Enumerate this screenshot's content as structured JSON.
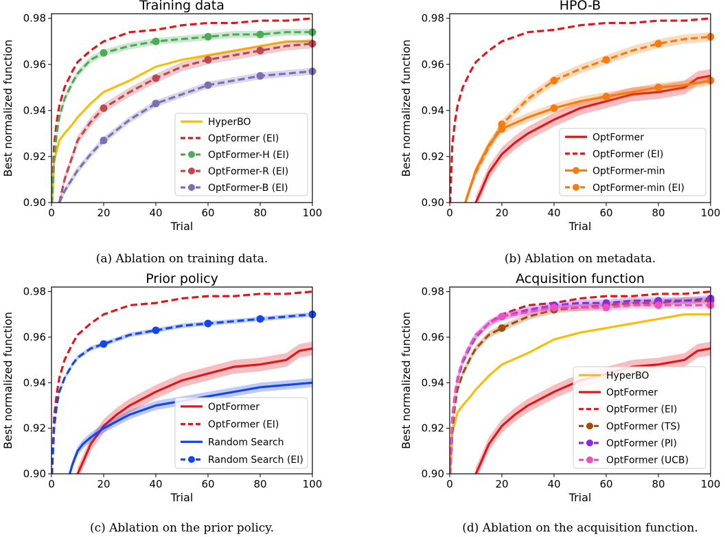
{
  "chart_data": [
    {
      "type": "line",
      "title": "Training data",
      "caption": "(a) Ablation on training data.",
      "xlabel": "Trial",
      "ylabel": "Best normalized function",
      "xlim": [
        0,
        100
      ],
      "ylim": [
        0.9,
        0.982
      ],
      "xticks": [
        "0",
        "20",
        "40",
        "60",
        "80",
        "100"
      ],
      "yticks": [
        "0.90",
        "0.92",
        "0.94",
        "0.96",
        "0.98"
      ],
      "legend_position": "lower-right",
      "series": [
        {
          "name": "HyperBO",
          "color": "#fbbc05",
          "dash": "solid",
          "marker": false,
          "band": 0,
          "x": [
            0,
            1,
            3,
            5,
            8,
            10,
            15,
            20,
            30,
            40,
            50,
            60,
            70,
            80,
            90,
            100
          ],
          "y": [
            0.895,
            0.918,
            0.927,
            0.93,
            0.934,
            0.937,
            0.943,
            0.948,
            0.953,
            0.959,
            0.962,
            0.964,
            0.966,
            0.968,
            0.97,
            0.97
          ]
        },
        {
          "name": "OptFormer (EI)",
          "color": "#e0161b",
          "dash": "dash",
          "marker": false,
          "band": 0,
          "x": [
            0,
            1,
            2,
            3,
            5,
            8,
            10,
            15,
            20,
            30,
            40,
            50,
            60,
            70,
            80,
            90,
            100
          ],
          "y": [
            0.895,
            0.925,
            0.935,
            0.942,
            0.95,
            0.957,
            0.961,
            0.966,
            0.97,
            0.974,
            0.975,
            0.977,
            0.978,
            0.978,
            0.979,
            0.979,
            0.98
          ]
        },
        {
          "name": "OptFormer-H (EI)",
          "color": "#4daa57",
          "dash": "dash",
          "marker": true,
          "band": 0.0015,
          "x": [
            0,
            1,
            2,
            3,
            5,
            8,
            10,
            15,
            20,
            30,
            40,
            50,
            60,
            70,
            80,
            90,
            100
          ],
          "y": [
            0.895,
            0.918,
            0.93,
            0.937,
            0.945,
            0.952,
            0.956,
            0.962,
            0.965,
            0.968,
            0.97,
            0.971,
            0.972,
            0.973,
            0.973,
            0.974,
            0.974
          ],
          "markers_at": [
            20,
            40,
            60,
            80,
            100
          ]
        },
        {
          "name": "OptFormer-R (EI)",
          "color": "#c0474f",
          "dash": "dash",
          "marker": true,
          "band": 0.002,
          "x": [
            3,
            5,
            8,
            10,
            15,
            20,
            30,
            40,
            50,
            60,
            70,
            80,
            90,
            100
          ],
          "y": [
            0.9,
            0.91,
            0.92,
            0.927,
            0.935,
            0.941,
            0.948,
            0.954,
            0.959,
            0.962,
            0.964,
            0.966,
            0.968,
            0.969
          ],
          "markers_at": [
            20,
            40,
            60,
            80,
            100
          ]
        },
        {
          "name": "OptFormer-B (EI)",
          "color": "#7e6fb5",
          "dash": "dash",
          "marker": true,
          "band": 0.0015,
          "x": [
            3,
            5,
            10,
            15,
            20,
            30,
            40,
            50,
            60,
            70,
            80,
            90,
            100
          ],
          "y": [
            0.9,
            0.905,
            0.914,
            0.921,
            0.927,
            0.936,
            0.943,
            0.947,
            0.951,
            0.953,
            0.955,
            0.956,
            0.957
          ],
          "markers_at": [
            20,
            40,
            60,
            80,
            100
          ]
        }
      ]
    },
    {
      "type": "line",
      "title": "HPO-B",
      "caption": "(b) Ablation on metadata.",
      "xlabel": "Trial",
      "ylabel": "Best normalized function",
      "xlim": [
        0,
        100
      ],
      "ylim": [
        0.9,
        0.982
      ],
      "xticks": [
        "0",
        "20",
        "40",
        "60",
        "80",
        "100"
      ],
      "yticks": [
        "0.90",
        "0.92",
        "0.94",
        "0.96",
        "0.98"
      ],
      "legend_position": "lower-right",
      "series": [
        {
          "name": "OptFormer",
          "color": "#e0161b",
          "dash": "solid",
          "marker": false,
          "band": 0.003,
          "x": [
            10,
            12,
            15,
            20,
            25,
            30,
            40,
            50,
            60,
            70,
            80,
            90,
            95,
            100
          ],
          "y": [
            0.9,
            0.905,
            0.913,
            0.921,
            0.926,
            0.93,
            0.936,
            0.941,
            0.944,
            0.947,
            0.948,
            0.95,
            0.954,
            0.955
          ],
          "markers_at": []
        },
        {
          "name": "OptFormer (EI)",
          "color": "#e0161b",
          "dash": "dash",
          "marker": false,
          "band": 0,
          "x": [
            0,
            1,
            2,
            3,
            5,
            8,
            10,
            15,
            20,
            30,
            40,
            50,
            60,
            70,
            80,
            90,
            100
          ],
          "y": [
            0.895,
            0.925,
            0.935,
            0.942,
            0.95,
            0.957,
            0.961,
            0.966,
            0.97,
            0.974,
            0.975,
            0.977,
            0.978,
            0.978,
            0.979,
            0.979,
            0.98
          ],
          "markers_at": []
        },
        {
          "name": "OptFormer-min",
          "color": "#f57c0f",
          "dash": "solid",
          "marker": true,
          "band": 0.002,
          "x": [
            6,
            8,
            10,
            15,
            20,
            30,
            40,
            50,
            60,
            70,
            80,
            90,
            100
          ],
          "y": [
            0.9,
            0.907,
            0.914,
            0.925,
            0.932,
            0.937,
            0.941,
            0.944,
            0.946,
            0.948,
            0.95,
            0.951,
            0.953
          ],
          "markers_at": [
            20,
            40,
            60,
            80,
            100
          ]
        },
        {
          "name": "OptFormer-min (EI)",
          "color": "#f57c0f",
          "dash": "dash",
          "marker": true,
          "band": 0.002,
          "x": [
            6,
            8,
            10,
            15,
            20,
            30,
            40,
            50,
            60,
            70,
            80,
            90,
            100
          ],
          "y": [
            0.9,
            0.907,
            0.913,
            0.924,
            0.934,
            0.945,
            0.953,
            0.958,
            0.962,
            0.966,
            0.969,
            0.971,
            0.972
          ],
          "markers_at": [
            20,
            40,
            60,
            80,
            100
          ]
        }
      ]
    },
    {
      "type": "line",
      "title": "Prior policy",
      "caption": "(c) Ablation on the prior policy.",
      "xlabel": "Trial",
      "ylabel": "Best normalized function",
      "xlim": [
        0,
        100
      ],
      "ylim": [
        0.9,
        0.982
      ],
      "xticks": [
        "0",
        "20",
        "40",
        "60",
        "80",
        "100"
      ],
      "yticks": [
        "0.90",
        "0.92",
        "0.94",
        "0.96",
        "0.98"
      ],
      "legend_position": "lower-right",
      "series": [
        {
          "name": "OptFormer",
          "color": "#e0161b",
          "dash": "solid",
          "marker": false,
          "band": 0.003,
          "x": [
            10,
            12,
            15,
            20,
            25,
            30,
            40,
            50,
            60,
            70,
            80,
            90,
            95,
            100
          ],
          "y": [
            0.9,
            0.905,
            0.913,
            0.921,
            0.926,
            0.93,
            0.936,
            0.941,
            0.944,
            0.947,
            0.948,
            0.95,
            0.954,
            0.955
          ],
          "markers_at": []
        },
        {
          "name": "OptFormer (EI)",
          "color": "#e0161b",
          "dash": "dash",
          "marker": false,
          "band": 0,
          "x": [
            0,
            1,
            2,
            3,
            5,
            8,
            10,
            15,
            20,
            30,
            40,
            50,
            60,
            70,
            80,
            90,
            100
          ],
          "y": [
            0.895,
            0.925,
            0.935,
            0.942,
            0.95,
            0.957,
            0.961,
            0.966,
            0.97,
            0.974,
            0.975,
            0.977,
            0.978,
            0.978,
            0.979,
            0.979,
            0.98
          ],
          "markers_at": []
        },
        {
          "name": "Random Search",
          "color": "#1446e8",
          "dash": "solid",
          "marker": false,
          "band": 0.002,
          "x": [
            7,
            8,
            10,
            12,
            15,
            20,
            30,
            40,
            50,
            60,
            70,
            80,
            90,
            100
          ],
          "y": [
            0.9,
            0.904,
            0.91,
            0.913,
            0.916,
            0.92,
            0.926,
            0.93,
            0.932,
            0.934,
            0.936,
            0.938,
            0.939,
            0.94
          ],
          "markers_at": []
        },
        {
          "name": "Random Search (EI)",
          "color": "#1446e8",
          "dash": "dash",
          "marker": true,
          "band": 0.001,
          "x": [
            0,
            1,
            2,
            3,
            5,
            8,
            10,
            15,
            20,
            30,
            40,
            50,
            60,
            70,
            80,
            90,
            100
          ],
          "y": [
            0.895,
            0.92,
            0.93,
            0.936,
            0.942,
            0.948,
            0.951,
            0.955,
            0.957,
            0.961,
            0.963,
            0.965,
            0.966,
            0.967,
            0.968,
            0.969,
            0.97
          ],
          "markers_at": [
            20,
            40,
            60,
            80,
            100
          ]
        }
      ]
    },
    {
      "type": "line",
      "title": "Acquisition function",
      "caption": "(d) Ablation on the acquisition function.",
      "xlabel": "Trial",
      "ylabel": "Best normalized function",
      "xlim": [
        0,
        100
      ],
      "ylim": [
        0.9,
        0.982
      ],
      "xticks": [
        "0",
        "20",
        "40",
        "60",
        "80",
        "100"
      ],
      "yticks": [
        "0.90",
        "0.92",
        "0.94",
        "0.96",
        "0.98"
      ],
      "legend_position": "lower-right",
      "series": [
        {
          "name": "HyperBO",
          "color": "#fbbc05",
          "dash": "solid",
          "marker": false,
          "band": 0,
          "x": [
            0,
            1,
            3,
            5,
            8,
            10,
            15,
            20,
            30,
            40,
            50,
            60,
            70,
            80,
            90,
            100
          ],
          "y": [
            0.895,
            0.918,
            0.927,
            0.93,
            0.934,
            0.937,
            0.943,
            0.948,
            0.953,
            0.959,
            0.962,
            0.964,
            0.966,
            0.968,
            0.97,
            0.97
          ],
          "markers_at": []
        },
        {
          "name": "OptFormer",
          "color": "#e0161b",
          "dash": "solid",
          "marker": false,
          "band": 0.003,
          "x": [
            10,
            12,
            15,
            20,
            25,
            30,
            40,
            50,
            60,
            70,
            80,
            90,
            95,
            100
          ],
          "y": [
            0.9,
            0.905,
            0.913,
            0.921,
            0.926,
            0.93,
            0.936,
            0.941,
            0.944,
            0.947,
            0.948,
            0.95,
            0.954,
            0.955
          ],
          "markers_at": []
        },
        {
          "name": "OptFormer (EI)",
          "color": "#e0161b",
          "dash": "dash",
          "marker": false,
          "band": 0,
          "x": [
            0,
            1,
            2,
            3,
            5,
            8,
            10,
            15,
            20,
            30,
            40,
            50,
            60,
            70,
            80,
            90,
            100
          ],
          "y": [
            0.895,
            0.925,
            0.935,
            0.942,
            0.95,
            0.957,
            0.961,
            0.966,
            0.97,
            0.974,
            0.975,
            0.977,
            0.978,
            0.978,
            0.979,
            0.979,
            0.98
          ],
          "markers_at": []
        },
        {
          "name": "OptFormer (TS)",
          "color": "#a34f0c",
          "dash": "dash",
          "marker": true,
          "band": 0.0015,
          "x": [
            0,
            1,
            2,
            3,
            5,
            8,
            10,
            15,
            20,
            30,
            40,
            50,
            60,
            70,
            80,
            90,
            100
          ],
          "y": [
            0.895,
            0.918,
            0.93,
            0.937,
            0.944,
            0.951,
            0.955,
            0.961,
            0.964,
            0.969,
            0.972,
            0.973,
            0.974,
            0.975,
            0.975,
            0.976,
            0.976
          ],
          "markers_at": [
            20,
            40,
            60,
            80,
            100
          ]
        },
        {
          "name": "OptFormer (PI)",
          "color": "#8a2be2",
          "dash": "dash",
          "marker": true,
          "band": 0.0015,
          "x": [
            0,
            1,
            2,
            3,
            5,
            8,
            10,
            15,
            20,
            30,
            40,
            50,
            60,
            70,
            80,
            90,
            100
          ],
          "y": [
            0.895,
            0.922,
            0.934,
            0.941,
            0.949,
            0.956,
            0.96,
            0.966,
            0.969,
            0.972,
            0.974,
            0.975,
            0.975,
            0.976,
            0.976,
            0.976,
            0.977
          ],
          "markers_at": [
            20,
            40,
            60,
            80,
            100
          ]
        },
        {
          "name": "OptFormer (UCB)",
          "color": "#f04fc3",
          "dash": "dash",
          "marker": true,
          "band": 0.0015,
          "x": [
            0,
            1,
            2,
            3,
            5,
            8,
            10,
            15,
            20,
            30,
            40,
            50,
            60,
            70,
            80,
            90,
            100
          ],
          "y": [
            0.895,
            0.923,
            0.935,
            0.942,
            0.95,
            0.957,
            0.961,
            0.966,
            0.969,
            0.971,
            0.973,
            0.973,
            0.973,
            0.974,
            0.974,
            0.974,
            0.974
          ],
          "markers_at": [
            20,
            40,
            60,
            80,
            100
          ]
        }
      ]
    }
  ]
}
